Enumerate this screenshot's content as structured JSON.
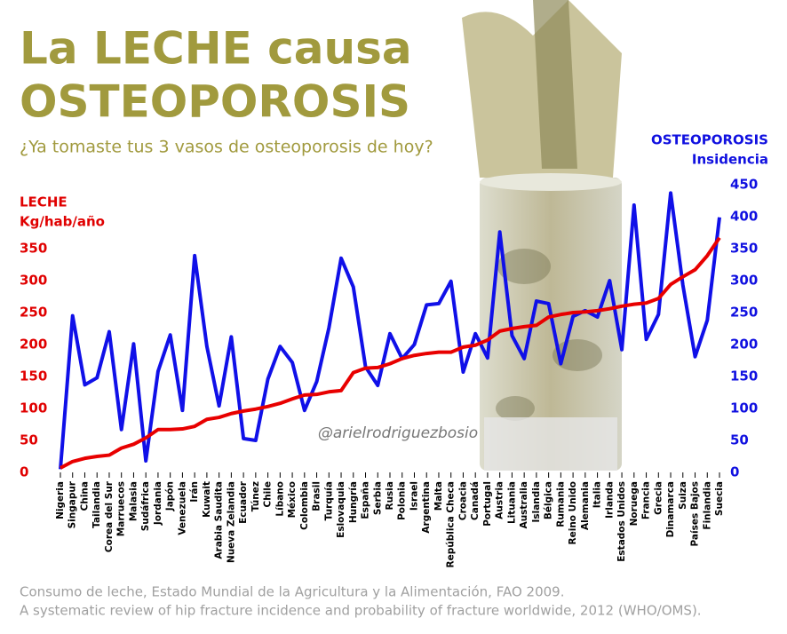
{
  "chart_data": {
    "type": "line",
    "title_lines": [
      "La LECHE causa",
      "OSTEOPOROSIS"
    ],
    "subtitle": "¿Ya tomaste tus 3 vasos de osteoporosis de hoy?",
    "ylabel": "Kg/hab/año",
    "y2label": "Insidencia",
    "annotation": "@arielrodriguezbosio",
    "sources": [
      "Consumo de leche, Estado Mundial de la Agricultura y la Alimentación, FAO 2009.",
      "A systematic review of hip fracture incidence and probability of fracture worldwide, 2012 (WHO/OMS)."
    ],
    "categories": [
      "Nigeria",
      "Singapur",
      "China",
      "Tailandia",
      "Corea del Sur",
      "Marruecos",
      "Malasia",
      "Sudáfrica",
      "Jordania",
      "Japón",
      "Venezuela",
      "Irán",
      "Kuwait",
      "Arabia Saudita",
      "Nueva Zelandia",
      "Ecuador",
      "Túnez",
      "Chile",
      "Líbano",
      "México",
      "Colombia",
      "Brasil",
      "Turquía",
      "Eslovaquia",
      "Hungría",
      "España",
      "Serbia",
      "Rusia",
      "Polonia",
      "Israel",
      "Argentina",
      "Malta",
      "República Checa",
      "Croacia",
      "Canadá",
      "Portugal",
      "Austria",
      "Lituania",
      "Australia",
      "Islandia",
      "Bélgica",
      "Rumania",
      "Reino Unido",
      "Alemania",
      "Italia",
      "Irlanda",
      "Estados Unidos",
      "Noruega",
      "Francia",
      "Grecia",
      "Dinamarca",
      "Suiza",
      "Países Bajos",
      "Finlandia",
      "Suecia"
    ],
    "series": [
      {
        "name": "LECHE",
        "color": "#e80000",
        "axis": "y",
        "values": [
          7,
          17,
          22,
          25,
          27,
          38,
          44,
          54,
          67,
          67,
          68,
          72,
          83,
          86,
          92,
          96,
          99,
          103,
          108,
          115,
          121,
          122,
          126,
          128,
          156,
          163,
          164,
          170,
          178,
          183,
          186,
          188,
          188,
          196,
          199,
          207,
          221,
          225,
          228,
          230,
          243,
          247,
          250,
          251,
          253,
          256,
          260,
          263,
          265,
          272,
          294,
          306,
          317,
          339,
          367
        ]
      },
      {
        "name": "OSTEOPOROSIS",
        "color": "#1010e8",
        "axis": "y2",
        "values": [
          5,
          245,
          137,
          148,
          220,
          67,
          201,
          18,
          158,
          215,
          97,
          339,
          197,
          104,
          212,
          53,
          50,
          146,
          197,
          172,
          97,
          142,
          226,
          335,
          290,
          165,
          136,
          217,
          178,
          200,
          262,
          264,
          299,
          157,
          217,
          179,
          376,
          214,
          178,
          268,
          264,
          170,
          244,
          253,
          243,
          300,
          192,
          418,
          208,
          247,
          437,
          293,
          181,
          238,
          399
        ]
      }
    ],
    "ylim": [
      0,
      450
    ],
    "yticks": [
      0,
      50,
      100,
      150,
      200,
      250,
      300,
      350
    ],
    "y2lim": [
      0,
      450
    ],
    "y2ticks": [
      0,
      50,
      100,
      150,
      200,
      250,
      300,
      350,
      400,
      450
    ]
  }
}
